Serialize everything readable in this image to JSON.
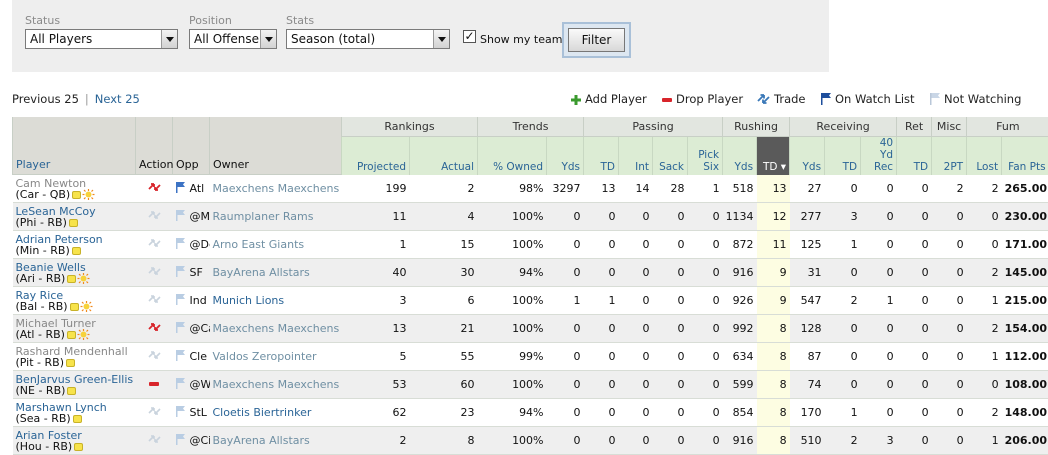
{
  "filters": {
    "status": {
      "label": "Status",
      "value": "All Players"
    },
    "position": {
      "label": "Position",
      "value": "All Offense"
    },
    "stats": {
      "label": "Stats",
      "value": "Season (total)"
    },
    "show_my_team": {
      "label": "Show my team",
      "checked": true,
      "mark": "✓"
    },
    "filter_button": "Filter"
  },
  "pager": {
    "prev": "Previous 25",
    "separator": "|",
    "next": "Next 25"
  },
  "actions": {
    "add": "Add Player",
    "drop": "Drop Player",
    "trade": "Trade",
    "watch": "On Watch List",
    "not_watching": "Not Watching"
  },
  "table": {
    "group_headers": {
      "rankings": "Rankings",
      "trends": "Trends",
      "passing": "Passing",
      "rushing": "Rushing",
      "receiving": "Receiving",
      "ret": "Ret",
      "misc": "Misc",
      "fum": "Fum"
    },
    "columns": {
      "player": "Player",
      "action": "Action",
      "opp": "Opp",
      "owner": "Owner",
      "projected": "Projected",
      "actual": "Actual",
      "owned": "% Owned",
      "pass_yds": "Yds",
      "pass_td": "TD",
      "int": "Int",
      "sack": "Sack",
      "pick_six": "Pick Six",
      "rush_yds": "Yds",
      "rush_td": "TD ▾",
      "rec_yds": "Yds",
      "rec_td": "TD",
      "rec_40yd": "40 Yd Rec",
      "ret_td": "TD",
      "two_pt": "2PT",
      "lost": "Lost",
      "fan_pts": "Fan Pts"
    },
    "rows": [
      {
        "name": "Cam Newton",
        "team_pos": "(Car - QB)",
        "opp": "Atl",
        "owner": "Maexchens Maexchens",
        "projected": "199",
        "actual": "2",
        "owned": "98%",
        "pass_yds": "3297",
        "pass_td": "13",
        "int": "14",
        "sack": "28",
        "pick_six": "1",
        "rush_yds": "518",
        "rush_td": "13",
        "rec_yds": "27",
        "rec_td": "0",
        "rec_40": "0",
        "ret_td": "0",
        "two_pt": "2",
        "lost": "2",
        "fan_pts": "265.00"
      },
      {
        "name": "LeSean McCoy",
        "team_pos": "(Phi - RB)",
        "opp": "@Mia",
        "owner": "Raumplaner Rams",
        "projected": "11",
        "actual": "4",
        "owned": "100%",
        "pass_yds": "0",
        "pass_td": "0",
        "int": "0",
        "sack": "0",
        "pick_six": "0",
        "rush_yds": "1134",
        "rush_td": "12",
        "rec_yds": "277",
        "rec_td": "3",
        "rec_40": "0",
        "ret_td": "0",
        "two_pt": "0",
        "lost": "0",
        "fan_pts": "230.00"
      },
      {
        "name": "Adrian Peterson",
        "team_pos": "(Min - RB)",
        "opp": "@Det",
        "owner": "Arno East Giants",
        "projected": "1",
        "actual": "15",
        "owned": "100%",
        "pass_yds": "0",
        "pass_td": "0",
        "int": "0",
        "sack": "0",
        "pick_six": "0",
        "rush_yds": "872",
        "rush_td": "11",
        "rec_yds": "125",
        "rec_td": "1",
        "rec_40": "0",
        "ret_td": "0",
        "two_pt": "0",
        "lost": "0",
        "fan_pts": "171.00"
      },
      {
        "name": "Beanie Wells",
        "team_pos": "(Ari - RB)",
        "opp": "SF",
        "owner": "BayArena Allstars",
        "projected": "40",
        "actual": "30",
        "owned": "94%",
        "pass_yds": "0",
        "pass_td": "0",
        "int": "0",
        "sack": "0",
        "pick_six": "0",
        "rush_yds": "916",
        "rush_td": "9",
        "rec_yds": "31",
        "rec_td": "0",
        "rec_40": "0",
        "ret_td": "0",
        "two_pt": "0",
        "lost": "2",
        "fan_pts": "145.00"
      },
      {
        "name": "Ray Rice",
        "team_pos": "(Bal - RB)",
        "opp": "Ind",
        "owner": "Munich Lions",
        "projected": "3",
        "actual": "6",
        "owned": "100%",
        "pass_yds": "1",
        "pass_td": "1",
        "int": "0",
        "sack": "0",
        "pick_six": "0",
        "rush_yds": "926",
        "rush_td": "9",
        "rec_yds": "547",
        "rec_td": "2",
        "rec_40": "1",
        "ret_td": "0",
        "two_pt": "0",
        "lost": "1",
        "fan_pts": "215.00"
      },
      {
        "name": "Michael Turner",
        "team_pos": "(Atl - RB)",
        "opp": "@Car",
        "owner": "Maexchens Maexchens",
        "projected": "13",
        "actual": "21",
        "owned": "100%",
        "pass_yds": "0",
        "pass_td": "0",
        "int": "0",
        "sack": "0",
        "pick_six": "0",
        "rush_yds": "992",
        "rush_td": "8",
        "rec_yds": "128",
        "rec_td": "0",
        "rec_40": "0",
        "ret_td": "0",
        "two_pt": "0",
        "lost": "2",
        "fan_pts": "154.00"
      },
      {
        "name": "Rashard Mendenhall",
        "team_pos": "(Pit - RB)",
        "opp": "Cle",
        "owner": "Valdos Zeropointer",
        "projected": "5",
        "actual": "55",
        "owned": "99%",
        "pass_yds": "0",
        "pass_td": "0",
        "int": "0",
        "sack": "0",
        "pick_six": "0",
        "rush_yds": "634",
        "rush_td": "8",
        "rec_yds": "87",
        "rec_td": "0",
        "rec_40": "0",
        "ret_td": "0",
        "two_pt": "0",
        "lost": "1",
        "fan_pts": "112.00"
      },
      {
        "name": "BenJarvus Green-Ellis",
        "team_pos": "(NE - RB)",
        "opp": "@Was",
        "owner": "Maexchens Maexchens",
        "projected": "53",
        "actual": "60",
        "owned": "100%",
        "pass_yds": "0",
        "pass_td": "0",
        "int": "0",
        "sack": "0",
        "pick_six": "0",
        "rush_yds": "599",
        "rush_td": "8",
        "rec_yds": "74",
        "rec_td": "0",
        "rec_40": "0",
        "ret_td": "0",
        "two_pt": "0",
        "lost": "0",
        "fan_pts": "108.00"
      },
      {
        "name": "Marshawn Lynch",
        "team_pos": "(Sea - RB)",
        "opp": "StL",
        "owner": "Cloetis Biertrinker",
        "projected": "62",
        "actual": "23",
        "owned": "94%",
        "pass_yds": "0",
        "pass_td": "0",
        "int": "0",
        "sack": "0",
        "pick_six": "0",
        "rush_yds": "854",
        "rush_td": "8",
        "rec_yds": "170",
        "rec_td": "1",
        "rec_40": "0",
        "ret_td": "0",
        "two_pt": "0",
        "lost": "2",
        "fan_pts": "148.00"
      },
      {
        "name": "Arian Foster",
        "team_pos": "(Hou - RB)",
        "opp": "@Cin",
        "owner": "BayArena Allstars",
        "projected": "2",
        "actual": "8",
        "owned": "100%",
        "pass_yds": "0",
        "pass_td": "0",
        "int": "0",
        "sack": "0",
        "pick_six": "0",
        "rush_yds": "916",
        "rush_td": "8",
        "rec_yds": "510",
        "rec_td": "2",
        "rec_40": "3",
        "ret_td": "0",
        "two_pt": "0",
        "lost": "1",
        "fan_pts": "206.00"
      }
    ]
  }
}
